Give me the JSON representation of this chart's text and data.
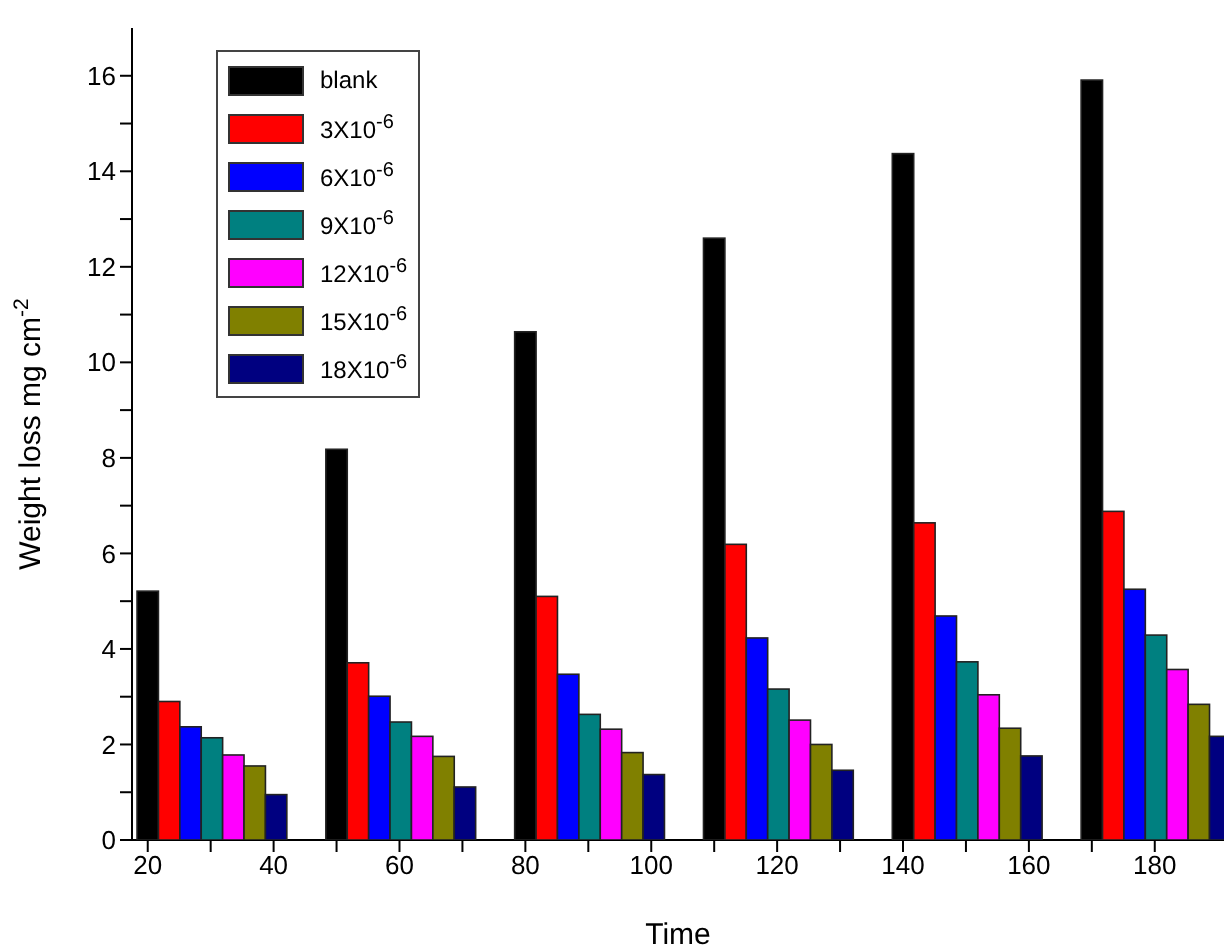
{
  "chart_data": {
    "type": "bar",
    "xlabel": "Time",
    "ylabel": "Weight loss mg cm$^{-2}$",
    "xlim": [
      17.5,
      191
    ],
    "xticks": [
      20,
      {
        "value": 30,
        "label": null
      },
      40,
      {
        "value": 50,
        "label": null
      },
      60,
      {
        "value": 70,
        "label": null
      },
      80,
      {
        "value": 90,
        "label": null
      },
      100,
      {
        "value": 110,
        "label": null
      },
      120,
      {
        "value": 130,
        "label": null
      },
      140,
      {
        "value": 150,
        "label": null
      },
      160,
      {
        "value": 170,
        "label": null
      },
      180
    ],
    "ylim": [
      0,
      17
    ],
    "yticks": [
      0,
      {
        "value": 1,
        "label": null
      },
      2,
      {
        "value": 3,
        "label": null
      },
      4,
      {
        "value": 5,
        "label": null
      },
      6,
      {
        "value": 7,
        "label": null
      },
      8,
      {
        "value": 9,
        "label": null
      },
      10,
      {
        "value": 11,
        "label": null
      },
      12,
      {
        "value": 13,
        "label": null
      },
      14,
      {
        "value": 15,
        "label": null
      },
      16
    ],
    "legend": "top left",
    "grid": false,
    "series": [
      {
        "name": "blank",
        "color": "#000000",
        "x": [
          20,
          50,
          80,
          110,
          140,
          170
        ],
        "values": [
          5.21,
          8.18,
          10.64,
          12.6,
          14.37,
          15.91
        ]
      },
      {
        "name": "3X10$^{-6}$",
        "color": "#ff0000",
        "x": [
          23.4,
          53.4,
          83.4,
          113.4,
          143.4,
          173.4
        ],
        "values": [
          2.9,
          3.71,
          5.1,
          6.19,
          6.64,
          6.88
        ]
      },
      {
        "name": "6X10$^{-6}$",
        "color": "#0000ff",
        "x": [
          26.8,
          56.8,
          86.8,
          116.8,
          146.8,
          176.8
        ],
        "values": [
          2.37,
          3.01,
          3.47,
          4.23,
          4.69,
          5.25
        ]
      },
      {
        "name": "9X10$^{-6}$",
        "color": "#008080",
        "x": [
          30.2,
          60.2,
          90.2,
          120.2,
          150.2,
          180.2
        ],
        "values": [
          2.14,
          2.47,
          2.63,
          3.16,
          3.73,
          4.29
        ]
      },
      {
        "name": "12X10$^{-6}$",
        "color": "#ff00ff",
        "x": [
          33.6,
          63.6,
          93.6,
          123.6,
          153.6,
          183.6
        ],
        "values": [
          1.78,
          2.17,
          2.32,
          2.51,
          3.04,
          3.57
        ]
      },
      {
        "name": "15X10$^{-6}$",
        "color": "#808000",
        "x": [
          37,
          67,
          97,
          127,
          157,
          187
        ],
        "values": [
          1.55,
          1.75,
          1.83,
          2.0,
          2.34,
          2.84
        ]
      },
      {
        "name": "18X10$^{-6}$",
        "color": "#000080",
        "x": [
          40.4,
          70.4,
          100.4,
          130.4,
          160.4,
          190.4
        ],
        "values": [
          0.95,
          1.11,
          1.37,
          1.46,
          1.76,
          2.17
        ]
      }
    ]
  }
}
